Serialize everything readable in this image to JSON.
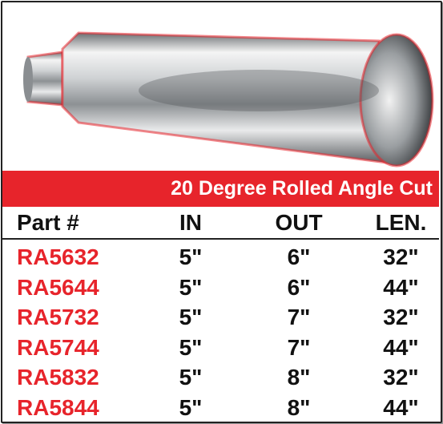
{
  "banner": "20 Degree Rolled Angle Cut",
  "table": {
    "header": [
      "Part #",
      "IN",
      "OUT",
      "LEN."
    ],
    "rows": [
      [
        "RA5632",
        "5\"",
        "6\"",
        "32\""
      ],
      [
        "RA5644",
        "5\"",
        "6\"",
        "44\""
      ],
      [
        "RA5732",
        "5\"",
        "7\"",
        "32\""
      ],
      [
        "RA5744",
        "5\"",
        "7\"",
        "44\""
      ],
      [
        "RA5832",
        "5\"",
        "8\"",
        "32\""
      ],
      [
        "RA5844",
        "5\"",
        "8\"",
        "44\""
      ]
    ]
  }
}
